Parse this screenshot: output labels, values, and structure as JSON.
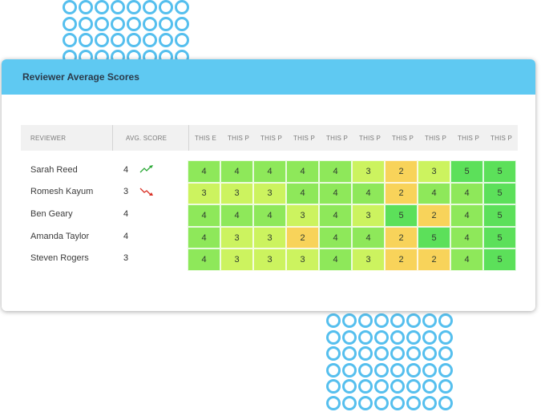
{
  "panel": {
    "title": "Reviewer Average Scores"
  },
  "table": {
    "headers": {
      "reviewer": "REVIEWER",
      "avg_score": "AVG. SCORE",
      "periods": [
        "THIS E",
        "THIS P",
        "THIS P",
        "THIS P",
        "THIS P",
        "THIS P",
        "THIS P",
        "THIS P",
        "THIS P",
        "THIS P"
      ]
    },
    "rows": [
      {
        "name": "Sarah Reed",
        "avg": "4",
        "trend": "up",
        "scores": [
          "4",
          "4",
          "4",
          "4",
          "4",
          "3",
          "2",
          "3",
          "5",
          "5"
        ]
      },
      {
        "name": "Romesh Kayum",
        "avg": "3",
        "trend": "down",
        "scores": [
          "3",
          "3",
          "3",
          "4",
          "4",
          "4",
          "2",
          "4",
          "4",
          "5"
        ]
      },
      {
        "name": "Ben Geary",
        "avg": "4",
        "trend": "",
        "scores": [
          "4",
          "4",
          "4",
          "3",
          "4",
          "3",
          "5",
          "2",
          "4",
          "5"
        ]
      },
      {
        "name": "Amanda Taylor",
        "avg": "4",
        "trend": "",
        "scores": [
          "4",
          "3",
          "3",
          "2",
          "4",
          "4",
          "2",
          "5",
          "4",
          "5"
        ]
      },
      {
        "name": "Steven Rogers",
        "avg": "3",
        "trend": "",
        "scores": [
          "4",
          "3",
          "3",
          "3",
          "4",
          "3",
          "2",
          "2",
          "4",
          "5"
        ]
      }
    ]
  },
  "colors": {
    "score_2": "#f8d35a",
    "score_3": "#ccf35f",
    "score_4": "#8ee85a",
    "score_5": "#5ce05a",
    "trend_up": "#2aa836",
    "trend_down": "#d93025",
    "header_bar": "#5fc9f2",
    "dot_ring": "#55bfee"
  }
}
